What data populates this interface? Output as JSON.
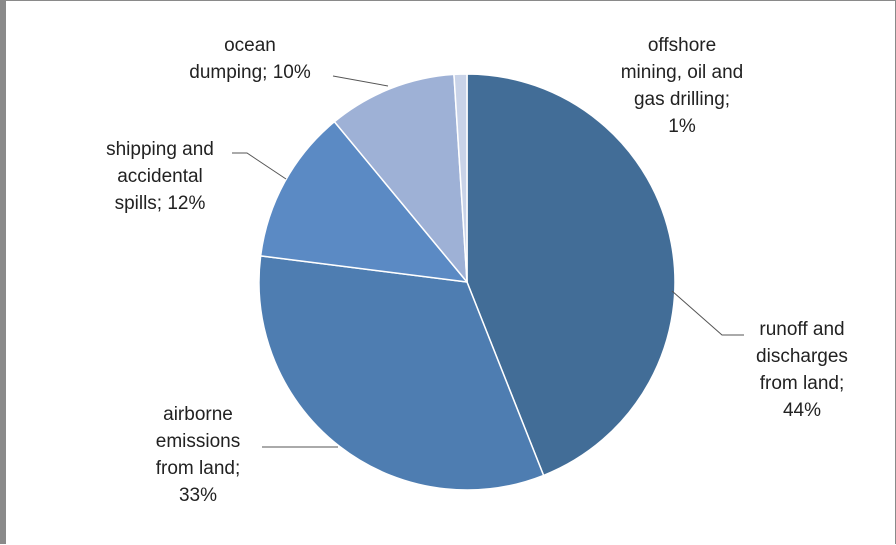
{
  "chart_data": {
    "type": "pie",
    "title": "",
    "start_angle_deg": 0,
    "direction": "clockwise",
    "slices": [
      {
        "name": "runoff and discharges from land",
        "value": 44,
        "label_lines": [
          "runoff and",
          "discharges",
          "from land;",
          "44%"
        ],
        "color": "#426D97"
      },
      {
        "name": "airborne emissions from land",
        "value": 33,
        "label_lines": [
          "airborne",
          "emissions",
          "from land;",
          "33%"
        ],
        "color": "#4E7DB1"
      },
      {
        "name": "shipping and accidental spills",
        "value": 12,
        "label_lines": [
          "shipping and",
          "accidental",
          "spills; 12%"
        ],
        "color": "#5B8AC4"
      },
      {
        "name": "ocean dumping",
        "value": 10,
        "label_lines": [
          "ocean",
          "dumping;  10%"
        ],
        "color": "#9EB1D6"
      },
      {
        "name": "offshore mining, oil and gas drilling",
        "value": 1,
        "label_lines": [
          "offshore",
          "mining, oil and",
          "gas drilling;",
          "1%"
        ],
        "color": "#C9D3E8"
      }
    ],
    "legend": "none"
  }
}
